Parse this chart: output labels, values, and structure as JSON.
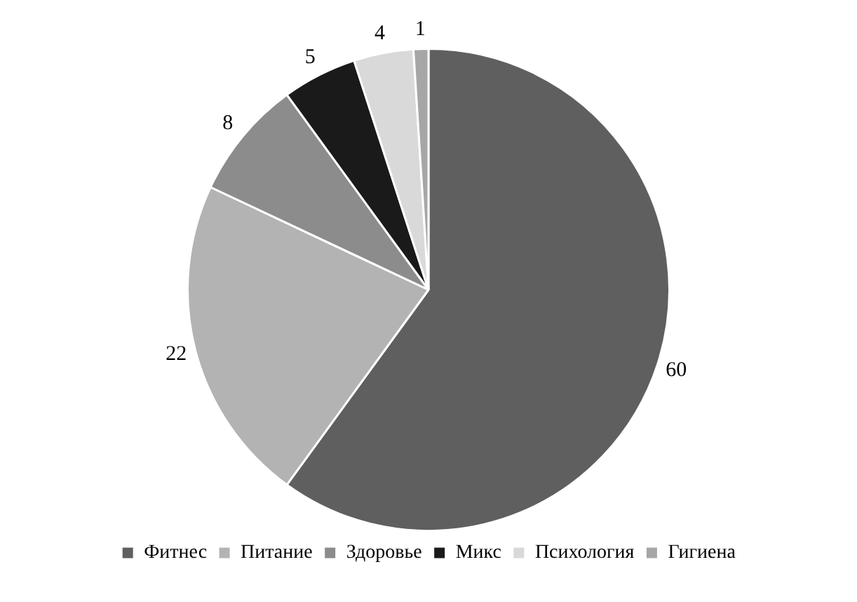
{
  "chart_data": {
    "type": "pie",
    "categories": [
      "Фитнес",
      "Питание",
      "Здоровье",
      "Микс",
      "Психология",
      "Гигиена"
    ],
    "values": [
      60,
      22,
      8,
      5,
      4,
      1
    ],
    "colors": [
      "#5f5f5f",
      "#b3b3b3",
      "#8c8c8c",
      "#1a1a1a",
      "#d9d9d9",
      "#a6a6a6"
    ],
    "data_labels": true,
    "legend": "bottom"
  }
}
